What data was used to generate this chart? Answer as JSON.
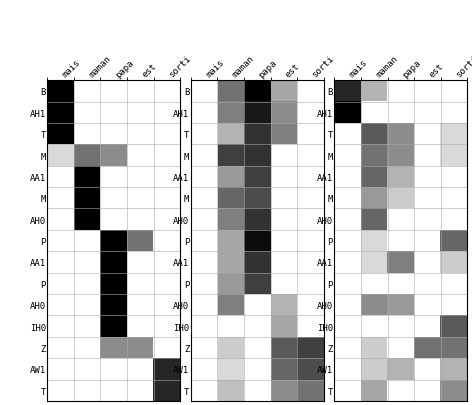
{
  "row_labels": [
    "B",
    "AH1",
    "T",
    "M",
    "AA1",
    "M",
    "AH0",
    "P",
    "AA1",
    "P",
    "AH0",
    "IH0",
    "Z",
    "AW1",
    "T"
  ],
  "col_labels": [
    "mais",
    "maman",
    "papa",
    "est",
    "sorti"
  ],
  "panel1": [
    [
      1.0,
      0.0,
      0.0,
      0.0,
      0.0
    ],
    [
      1.0,
      0.0,
      0.0,
      0.0,
      0.0
    ],
    [
      1.0,
      0.0,
      0.0,
      0.0,
      0.0
    ],
    [
      0.15,
      0.55,
      0.45,
      0.0,
      0.0
    ],
    [
      0.0,
      1.0,
      0.0,
      0.0,
      0.0
    ],
    [
      0.0,
      1.0,
      0.0,
      0.0,
      0.0
    ],
    [
      0.0,
      1.0,
      0.0,
      0.0,
      0.0
    ],
    [
      0.0,
      0.0,
      1.0,
      0.55,
      0.0
    ],
    [
      0.0,
      0.0,
      1.0,
      0.0,
      0.0
    ],
    [
      0.0,
      0.0,
      1.0,
      0.0,
      0.0
    ],
    [
      0.0,
      0.0,
      1.0,
      0.0,
      0.0
    ],
    [
      0.0,
      0.0,
      1.0,
      0.0,
      0.0
    ],
    [
      0.0,
      0.0,
      0.45,
      0.45,
      0.0
    ],
    [
      0.0,
      0.0,
      0.0,
      0.0,
      0.85
    ],
    [
      0.0,
      0.0,
      0.0,
      0.0,
      0.85
    ]
  ],
  "panel2": [
    [
      0.0,
      0.55,
      1.0,
      0.35,
      0.0
    ],
    [
      0.0,
      0.5,
      0.9,
      0.45,
      0.0
    ],
    [
      0.0,
      0.3,
      0.8,
      0.5,
      0.0
    ],
    [
      0.0,
      0.75,
      0.8,
      0.0,
      0.0
    ],
    [
      0.0,
      0.4,
      0.75,
      0.0,
      0.0
    ],
    [
      0.0,
      0.6,
      0.7,
      0.0,
      0.0
    ],
    [
      0.0,
      0.5,
      0.8,
      0.0,
      0.0
    ],
    [
      0.0,
      0.35,
      0.95,
      0.0,
      0.0
    ],
    [
      0.0,
      0.35,
      0.8,
      0.0,
      0.0
    ],
    [
      0.0,
      0.4,
      0.75,
      0.0,
      0.0
    ],
    [
      0.0,
      0.5,
      0.0,
      0.3,
      0.0
    ],
    [
      0.0,
      0.0,
      0.0,
      0.35,
      0.0
    ],
    [
      0.0,
      0.2,
      0.0,
      0.65,
      0.75
    ],
    [
      0.0,
      0.15,
      0.0,
      0.6,
      0.7
    ],
    [
      0.0,
      0.25,
      0.0,
      0.45,
      0.55
    ]
  ],
  "panel3": [
    [
      0.85,
      0.3,
      0.0,
      0.0,
      0.0
    ],
    [
      1.0,
      0.0,
      0.0,
      0.0,
      0.0
    ],
    [
      0.0,
      0.65,
      0.45,
      0.0,
      0.15
    ],
    [
      0.0,
      0.55,
      0.45,
      0.0,
      0.15
    ],
    [
      0.0,
      0.6,
      0.3,
      0.0,
      0.0
    ],
    [
      0.0,
      0.4,
      0.2,
      0.0,
      0.0
    ],
    [
      0.0,
      0.6,
      0.0,
      0.0,
      0.0
    ],
    [
      0.0,
      0.15,
      0.0,
      0.0,
      0.6
    ],
    [
      0.0,
      0.15,
      0.5,
      0.0,
      0.2
    ],
    [
      0.0,
      0.0,
      0.0,
      0.0,
      0.0
    ],
    [
      0.0,
      0.45,
      0.4,
      0.0,
      0.0
    ],
    [
      0.0,
      0.0,
      0.0,
      0.0,
      0.65
    ],
    [
      0.0,
      0.2,
      0.0,
      0.55,
      0.55
    ],
    [
      0.0,
      0.2,
      0.3,
      0.0,
      0.3
    ],
    [
      0.0,
      0.35,
      0.0,
      0.0,
      0.45
    ]
  ],
  "figsize": [
    4.72,
    4.06
  ],
  "dpi": 100
}
